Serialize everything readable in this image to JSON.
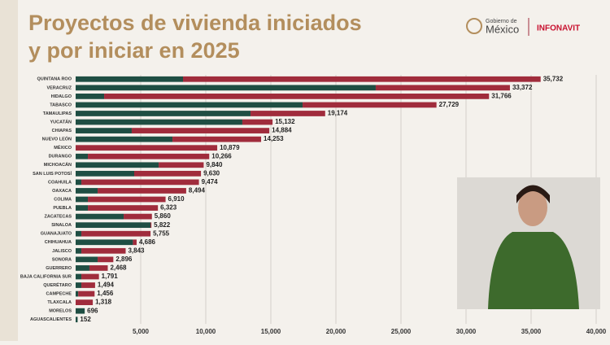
{
  "header": {
    "logo_gob_top": "Gobierno de",
    "logo_gob": "México",
    "logo_infonavit": "INFONAVIT"
  },
  "chart_data": {
    "type": "stacked-barh",
    "title": [
      "Proyectos de vivienda iniciados",
      "y por iniciar en 2025"
    ],
    "categories": [
      "QUINTANA ROO",
      "VERACRUZ",
      "HIDALGO",
      "TABASCO",
      "TAMAULIPAS",
      "YUCATÁN",
      "CHIAPAS",
      "NUEVO LEÓN",
      "MÉXICO",
      "DURANGO",
      "MICHOACÁN",
      "SAN LUIS POTOSÍ",
      "COAHUILA",
      "OAXACA",
      "COLIMA",
      "PUEBLA",
      "ZACATECAS",
      "SINALOA",
      "GUANAJUATO",
      "CHIHUAHUA",
      "JALISCO",
      "SONORA",
      "GUERRERO",
      "BAJA CALIFORNIA SUR",
      "QUERÉTARO",
      "CAMPECHE",
      "TLAXCALA",
      "MORELOS",
      "AGUASCALIENTES"
    ],
    "series": [
      {
        "color": "#1f4e43",
        "values": [
          8250,
          23060,
          2190,
          17440,
          13440,
          12810,
          4310,
          7440,
          0,
          940,
          6380,
          4500,
          440,
          1690,
          940,
          940,
          3690,
          5750,
          440,
          4400,
          440,
          1690,
          1060,
          440,
          440,
          200,
          0,
          696,
          152
        ]
      },
      {
        "color": "#a02c3c",
        "values": [
          27482,
          10312,
          29576,
          10289,
          5734,
          2322,
          10574,
          6813,
          10879,
          9326,
          3460,
          5130,
          9034,
          6804,
          5970,
          5383,
          2170,
          72,
          5315,
          286,
          3403,
          1206,
          1408,
          1351,
          1054,
          1256,
          1318,
          0,
          0
        ]
      }
    ],
    "totals": [
      35732,
      33372,
      31766,
      27729,
      19174,
      15132,
      14884,
      14253,
      10879,
      10266,
      9840,
      9630,
      9474,
      8494,
      6910,
      6323,
      5860,
      5822,
      5755,
      4686,
      3843,
      2896,
      2468,
      1791,
      1494,
      1456,
      1318,
      696,
      152
    ],
    "total_labels": [
      "35,732",
      "33,372",
      "31,766",
      "27,729",
      "19,174",
      "15,132",
      "14,884",
      "14,253",
      "10,879",
      "10,266",
      "9,840",
      "9,630",
      "9,474",
      "8,494",
      "6,910",
      "6,323",
      "5,860",
      "5,822",
      "5,755",
      "4,686",
      "3,843",
      "2,896",
      "2,468",
      "1,791",
      "1,494",
      "1,456",
      "1,318",
      "696",
      "152"
    ],
    "xlim": [
      0,
      40000
    ],
    "xticks": [
      {
        "value": 5000,
        "label": "5,000"
      },
      {
        "value": 10000,
        "label": "10,000"
      },
      {
        "value": 15000,
        "label": "15,000"
      },
      {
        "value": 20000,
        "label": "20,000"
      },
      {
        "value": 25000,
        "label": "25,000"
      },
      {
        "value": 30000,
        "label": "30,000"
      },
      {
        "value": 35000,
        "label": "35,000"
      },
      {
        "value": 40000,
        "label": "40,000"
      }
    ],
    "grid": true
  }
}
